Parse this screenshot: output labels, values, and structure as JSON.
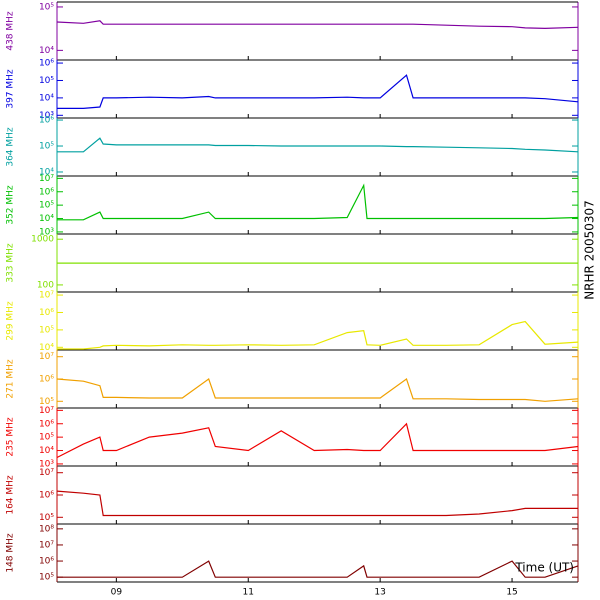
{
  "chart_data": [
    {
      "type": "line",
      "ylabel": "438 MHz",
      "color": "#8000a0",
      "log_y": true,
      "xlim": [
        8.1,
        16.0
      ],
      "ylim": [
        6000,
        130000
      ],
      "yticks": [
        {
          "value": 10000,
          "label": "10⁴"
        },
        {
          "value": 100000,
          "label": "10⁵"
        }
      ],
      "x": [
        8.1,
        8.5,
        8.75,
        8.8,
        9.0,
        9.5,
        10.0,
        10.4,
        10.5,
        11.0,
        11.5,
        12.0,
        12.5,
        12.75,
        12.8,
        13.0,
        13.4,
        13.5,
        14.0,
        14.5,
        15.0,
        15.2,
        15.5,
        16.0
      ],
      "values": [
        45000,
        42000,
        48000,
        40000,
        40000,
        40000,
        40000,
        40000,
        40000,
        40000,
        40000,
        40000,
        40000,
        40000,
        40000,
        40000,
        40000,
        40000,
        38000,
        36000,
        35000,
        33000,
        32000,
        34000
      ]
    },
    {
      "type": "line",
      "ylabel": "397 MHz",
      "color": "#0000e0",
      "log_y": true,
      "xlim": [
        8.1,
        16.0
      ],
      "ylim": [
        700,
        1500000
      ],
      "yticks": [
        {
          "value": 1000,
          "label": "10³"
        },
        {
          "value": 10000,
          "label": "10⁴"
        },
        {
          "value": 100000,
          "label": "10⁵"
        },
        {
          "value": 1000000,
          "label": "10⁶"
        }
      ],
      "x": [
        8.1,
        8.5,
        8.75,
        8.8,
        9.0,
        9.5,
        10.0,
        10.4,
        10.5,
        11.0,
        11.5,
        12.0,
        12.5,
        12.75,
        12.8,
        13.0,
        13.4,
        13.5,
        14.0,
        14.5,
        15.0,
        15.2,
        15.5,
        16.0
      ],
      "values": [
        2500,
        2500,
        3000,
        10000,
        10000,
        11000,
        10000,
        12000,
        10000,
        10000,
        10000,
        10000,
        11000,
        10000,
        10000,
        10000,
        200000,
        10000,
        10000,
        10000,
        10000,
        10000,
        9000,
        6000
      ]
    },
    {
      "type": "line",
      "ylabel": "364 MHz",
      "color": "#00a0a0",
      "log_y": true,
      "xlim": [
        8.1,
        16.0
      ],
      "ylim": [
        7000,
        1200000
      ],
      "yticks": [
        {
          "value": 10000,
          "label": "10⁴"
        },
        {
          "value": 100000,
          "label": "10⁵"
        },
        {
          "value": 1000000,
          "label": "10⁶"
        }
      ],
      "x": [
        8.1,
        8.5,
        8.75,
        8.8,
        9.0,
        9.5,
        10.0,
        10.4,
        10.5,
        11.0,
        11.5,
        12.0,
        12.5,
        12.75,
        12.8,
        13.0,
        13.4,
        13.5,
        14.0,
        14.5,
        15.0,
        15.2,
        15.5,
        16.0
      ],
      "values": [
        60000,
        60000,
        200000,
        120000,
        110000,
        110000,
        110000,
        110000,
        105000,
        105000,
        100000,
        100000,
        100000,
        100000,
        100000,
        100000,
        95000,
        95000,
        90000,
        85000,
        80000,
        75000,
        70000,
        60000
      ]
    },
    {
      "type": "line",
      "ylabel": "352 MHz",
      "color": "#00c000",
      "log_y": true,
      "xlim": [
        8.1,
        16.0
      ],
      "ylim": [
        700,
        15000000
      ],
      "yticks": [
        {
          "value": 1000,
          "label": "10³"
        },
        {
          "value": 10000,
          "label": "10⁴"
        },
        {
          "value": 100000,
          "label": "10⁵"
        },
        {
          "value": 1000000,
          "label": "10⁶"
        },
        {
          "value": 10000000,
          "label": "10⁷"
        }
      ],
      "x": [
        8.1,
        8.5,
        8.75,
        8.8,
        9.0,
        9.5,
        10.0,
        10.4,
        10.5,
        11.0,
        11.5,
        12.0,
        12.5,
        12.75,
        12.8,
        13.0,
        13.4,
        13.5,
        14.0,
        14.5,
        15.0,
        15.2,
        15.5,
        16.0
      ],
      "values": [
        8000,
        8000,
        30000,
        10000,
        10000,
        10000,
        10000,
        30000,
        10000,
        10000,
        10000,
        10000,
        12000,
        3000000,
        10000,
        10000,
        10000,
        10000,
        10000,
        10000,
        10000,
        10000,
        10000,
        12000
      ]
    },
    {
      "type": "line",
      "ylabel": "333 MHz",
      "color": "#80e000",
      "log_y": true,
      "xlim": [
        8.1,
        16.0
      ],
      "ylim": [
        70,
        1300
      ],
      "yticks": [
        100,
        1000
      ],
      "x": [
        8.1,
        8.5,
        8.75,
        8.8,
        9.0,
        9.5,
        10.0,
        10.4,
        10.5,
        11.0,
        11.5,
        12.0,
        12.5,
        12.75,
        12.8,
        13.0,
        13.4,
        13.5,
        14.0,
        14.5,
        15.0,
        15.2,
        15.5,
        16.0
      ],
      "values": [
        300,
        300,
        300,
        300,
        300,
        300,
        300,
        300,
        300,
        300,
        300,
        300,
        300,
        300,
        300,
        300,
        300,
        300,
        300,
        300,
        300,
        300,
        300,
        300
      ]
    },
    {
      "type": "line",
      "ylabel": "299 MHz",
      "color": "#e8e800",
      "log_y": true,
      "xlim": [
        8.1,
        16.0
      ],
      "ylim": [
        7000,
        15000000
      ],
      "yticks": [
        {
          "value": 10000,
          "label": "10⁴"
        },
        {
          "value": 100000,
          "label": "10⁵"
        },
        {
          "value": 1000000,
          "label": "10⁶"
        },
        {
          "value": 10000000,
          "label": "10⁷"
        }
      ],
      "x": [
        8.1,
        8.5,
        8.75,
        8.8,
        9.0,
        9.5,
        10.0,
        10.4,
        10.5,
        11.0,
        11.5,
        12.0,
        12.5,
        12.75,
        12.8,
        13.0,
        13.4,
        13.5,
        14.0,
        14.5,
        15.0,
        15.2,
        15.5,
        16.0
      ],
      "values": [
        8000,
        8000,
        10000,
        12000,
        13000,
        12000,
        14000,
        13000,
        13000,
        14000,
        13000,
        14000,
        70000,
        90000,
        14000,
        13000,
        30000,
        13000,
        13000,
        14000,
        200000,
        300000,
        15000,
        20000
      ]
    },
    {
      "type": "line",
      "ylabel": "271 MHz",
      "color": "#f0a000",
      "log_y": true,
      "xlim": [
        8.1,
        16.0
      ],
      "ylim": [
        50000,
        20000000
      ],
      "yticks": [
        {
          "value": 100000,
          "label": "10⁵"
        },
        {
          "value": 1000000,
          "label": "10⁶"
        },
        {
          "value": 10000000,
          "label": "10⁷"
        }
      ],
      "x": [
        8.1,
        8.5,
        8.75,
        8.8,
        9.0,
        9.5,
        10.0,
        10.4,
        10.5,
        11.0,
        11.5,
        12.0,
        12.5,
        12.75,
        12.8,
        13.0,
        13.4,
        13.5,
        14.0,
        14.5,
        15.0,
        15.2,
        15.5,
        16.0
      ],
      "values": [
        1000000,
        800000,
        500000,
        150000,
        150000,
        140000,
        140000,
        1000000,
        140000,
        140000,
        140000,
        140000,
        140000,
        140000,
        140000,
        140000,
        1000000,
        130000,
        130000,
        120000,
        120000,
        120000,
        100000,
        130000
      ]
    },
    {
      "type": "line",
      "ylabel": "235 MHz",
      "color": "#f00000",
      "log_y": true,
      "xlim": [
        8.1,
        16.0
      ],
      "ylim": [
        700,
        15000000
      ],
      "yticks": [
        {
          "value": 1000,
          "label": "10³"
        },
        {
          "value": 10000,
          "label": "10⁴"
        },
        {
          "value": 100000,
          "label": "10⁵"
        },
        {
          "value": 1000000,
          "label": "10⁶"
        },
        {
          "value": 10000000,
          "label": "10⁷"
        }
      ],
      "x": [
        8.1,
        8.5,
        8.75,
        8.8,
        9.0,
        9.5,
        10.0,
        10.4,
        10.5,
        11.0,
        11.5,
        12.0,
        12.5,
        12.75,
        12.8,
        13.0,
        13.4,
        13.5,
        14.0,
        14.5,
        15.0,
        15.2,
        15.5,
        16.0
      ],
      "values": [
        3000,
        30000,
        100000,
        10000,
        10000,
        100000,
        200000,
        500000,
        20000,
        10000,
        300000,
        10000,
        12000,
        10000,
        10000,
        10000,
        1000000,
        10000,
        10000,
        10000,
        10000,
        10000,
        10000,
        20000
      ]
    },
    {
      "type": "line",
      "ylabel": "164 MHz",
      "color": "#c00000",
      "log_y": true,
      "xlim": [
        8.1,
        16.0
      ],
      "ylim": [
        50000,
        20000000
      ],
      "yticks": [
        {
          "value": 100000,
          "label": "10⁵"
        },
        {
          "value": 1000000,
          "label": "10⁶"
        },
        {
          "value": 10000000,
          "label": "10⁷"
        }
      ],
      "x": [
        8.1,
        8.5,
        8.75,
        8.8,
        9.0,
        9.5,
        10.0,
        10.4,
        10.5,
        11.0,
        11.5,
        12.0,
        12.5,
        12.75,
        12.8,
        13.0,
        13.4,
        13.5,
        14.0,
        14.5,
        15.0,
        15.2,
        15.5,
        16.0
      ],
      "values": [
        1500000,
        1200000,
        1000000,
        120000,
        120000,
        120000,
        120000,
        120000,
        120000,
        120000,
        120000,
        120000,
        120000,
        120000,
        120000,
        120000,
        120000,
        120000,
        120000,
        140000,
        200000,
        250000,
        250000,
        250000
      ]
    },
    {
      "type": "line",
      "ylabel": "148 MHz",
      "color": "#800000",
      "log_y": true,
      "xlim": [
        8.1,
        16.0
      ],
      "ylim": [
        50000,
        200000000
      ],
      "yticks": [
        {
          "value": 100000,
          "label": "10⁵"
        },
        {
          "value": 1000000,
          "label": "10⁶"
        },
        {
          "value": 10000000,
          "label": "10⁷"
        },
        {
          "value": 100000000,
          "label": "10⁸"
        }
      ],
      "x": [
        8.1,
        8.5,
        8.75,
        8.8,
        9.0,
        9.5,
        10.0,
        10.4,
        10.5,
        11.0,
        11.5,
        12.0,
        12.5,
        12.75,
        12.8,
        13.0,
        13.4,
        13.5,
        14.0,
        14.5,
        15.0,
        15.2,
        15.5,
        16.0
      ],
      "values": [
        100000,
        100000,
        100000,
        100000,
        100000,
        100000,
        100000,
        1000000,
        100000,
        100000,
        100000,
        100000,
        100000,
        500000,
        100000,
        100000,
        100000,
        100000,
        100000,
        100000,
        1000000,
        100000,
        100000,
        500000
      ],
      "xticks": [
        {
          "value": 9,
          "label": "09"
        },
        11,
        13,
        15
      ],
      "xlabel": "Time (UT)",
      "annotation": "NRHR 20050307"
    }
  ]
}
